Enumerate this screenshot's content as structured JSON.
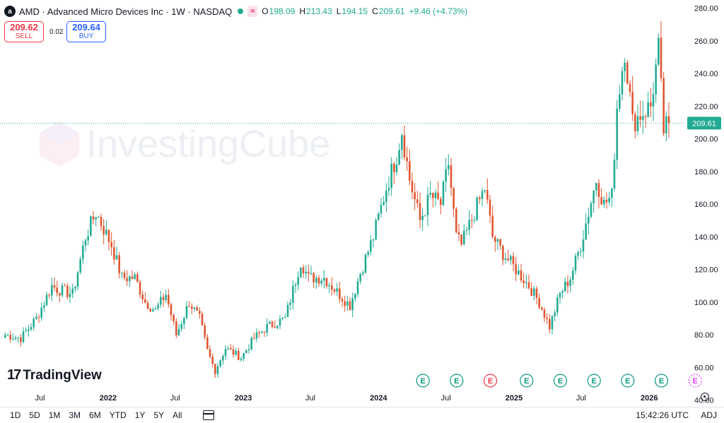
{
  "header": {
    "logo_text": "a",
    "title": "AMD · Advanced Micro Devices Inc · 1W · NASDAQ",
    "status_badge": "≈",
    "ohlc": [
      {
        "label": "O",
        "value": "198.09"
      },
      {
        "label": "H",
        "value": "213.43"
      },
      {
        "label": "L",
        "value": "194.15"
      },
      {
        "label": "C",
        "value": "209.61"
      },
      {
        "label": "",
        "value": "+9.46 (+4.73%)"
      }
    ]
  },
  "trade": {
    "sell_price": "209.62",
    "sell_label": "SELL",
    "spread": "0.02",
    "buy_price": "209.64",
    "buy_label": "BUY"
  },
  "watermark": "InvestingCube",
  "branding": "TradingView",
  "bottom_bar": {
    "ranges": [
      "1D",
      "5D",
      "1M",
      "3M",
      "6M",
      "YTD",
      "1Y",
      "5Y",
      "All"
    ],
    "time": "15:42:26 UTC",
    "adj_label": "ADJ"
  },
  "colors": {
    "up": "#22ab94",
    "down": "#e0542f",
    "last_price_bg": "#22ab94"
  },
  "chart_data": {
    "type": "candlestick",
    "title": "AMD · Advanced Micro Devices Inc · 1W · NASDAQ",
    "y_axis": {
      "side": "right",
      "range": [
        36,
        285
      ],
      "ticks": [
        "280.00",
        "260.00",
        "240.00",
        "220.00",
        "200.00",
        "180.00",
        "160.00",
        "140.00",
        "120.00",
        "100.00",
        "80.00",
        "60.00",
        "40.00"
      ]
    },
    "x_axis": {
      "ticks": [
        {
          "label": "Jul",
          "date": "2021-07-01"
        },
        {
          "label": "2022",
          "date": "2022-01-01"
        },
        {
          "label": "Jul",
          "date": "2022-07-01"
        },
        {
          "label": "2023",
          "date": "2023-01-01"
        },
        {
          "label": "Jul",
          "date": "2023-07-01"
        },
        {
          "label": "2024",
          "date": "2024-01-01"
        },
        {
          "label": "Jul",
          "date": "2024-07-01"
        },
        {
          "label": "2025",
          "date": "2025-01-01"
        },
        {
          "label": "Jul",
          "date": "2025-07-01"
        },
        {
          "label": "2026",
          "date": "2026-01-01"
        }
      ]
    },
    "last_price": "209.61",
    "last_price_value": 209.61,
    "earnings_markers": [
      {
        "date": "2024-04-30",
        "label": "E",
        "kind": "up"
      },
      {
        "date": "2024-07-30",
        "label": "E",
        "kind": "up"
      },
      {
        "date": "2024-10-29",
        "label": "E",
        "kind": "down"
      },
      {
        "date": "2025-02-04",
        "label": "E",
        "kind": "up"
      },
      {
        "date": "2025-05-06",
        "label": "E",
        "kind": "up"
      },
      {
        "date": "2025-08-05",
        "label": "E",
        "kind": "up"
      },
      {
        "date": "2025-11-04",
        "label": "E",
        "kind": "up"
      },
      {
        "date": "2026-02-03",
        "label": "E",
        "kind": "up"
      },
      {
        "date": "2026-05-05",
        "label": "E",
        "kind": "future"
      }
    ],
    "path_anchors": [
      [
        "2021-03-29",
        80
      ],
      [
        "2021-05-10",
        78
      ],
      [
        "2021-06-21",
        90
      ],
      [
        "2021-08-02",
        110
      ],
      [
        "2021-08-16",
        108
      ],
      [
        "2021-09-27",
        105
      ],
      [
        "2021-11-01",
        140
      ],
      [
        "2021-11-29",
        155
      ],
      [
        "2021-12-20",
        145
      ],
      [
        "2022-01-10",
        135
      ],
      [
        "2022-02-07",
        115
      ],
      [
        "2022-03-14",
        115
      ],
      [
        "2022-04-11",
        100
      ],
      [
        "2022-05-09",
        95
      ],
      [
        "2022-06-06",
        105
      ],
      [
        "2022-07-04",
        80
      ],
      [
        "2022-08-08",
        100
      ],
      [
        "2022-09-05",
        90
      ],
      [
        "2022-09-26",
        70
      ],
      [
        "2022-10-17",
        58
      ],
      [
        "2022-11-14",
        72
      ],
      [
        "2022-12-26",
        66
      ],
      [
        "2023-01-30",
        78
      ],
      [
        "2023-03-06",
        85
      ],
      [
        "2023-04-24",
        90
      ],
      [
        "2023-06-05",
        125
      ],
      [
        "2023-06-26",
        115
      ],
      [
        "2023-08-07",
        115
      ],
      [
        "2023-09-04",
        108
      ],
      [
        "2023-10-16",
        98
      ],
      [
        "2023-11-13",
        118
      ],
      [
        "2023-12-18",
        140
      ],
      [
        "2024-01-22",
        170
      ],
      [
        "2024-02-19",
        190
      ],
      [
        "2024-03-04",
        205
      ],
      [
        "2024-03-25",
        175
      ],
      [
        "2024-04-22",
        150
      ],
      [
        "2024-05-20",
        165
      ],
      [
        "2024-06-17",
        160
      ],
      [
        "2024-07-08",
        185
      ],
      [
        "2024-07-29",
        140
      ],
      [
        "2024-08-12",
        135
      ],
      [
        "2024-09-16",
        155
      ],
      [
        "2024-10-14",
        170
      ],
      [
        "2024-11-04",
        140
      ],
      [
        "2024-12-02",
        130
      ],
      [
        "2025-01-06",
        120
      ],
      [
        "2025-02-10",
        110
      ],
      [
        "2025-03-10",
        100
      ],
      [
        "2025-04-07",
        85
      ],
      [
        "2025-05-05",
        105
      ],
      [
        "2025-06-02",
        115
      ],
      [
        "2025-06-30",
        135
      ],
      [
        "2025-07-21",
        155
      ],
      [
        "2025-08-11",
        175
      ],
      [
        "2025-09-01",
        160
      ],
      [
        "2025-09-22",
        165
      ],
      [
        "2025-10-06",
        220
      ],
      [
        "2025-10-27",
        255
      ],
      [
        "2025-11-17",
        210
      ],
      [
        "2025-12-08",
        215
      ],
      [
        "2026-01-05",
        220
      ],
      [
        "2026-01-26",
        255
      ],
      [
        "2026-02-09",
        205
      ],
      [
        "2026-02-23",
        209.61
      ]
    ]
  }
}
